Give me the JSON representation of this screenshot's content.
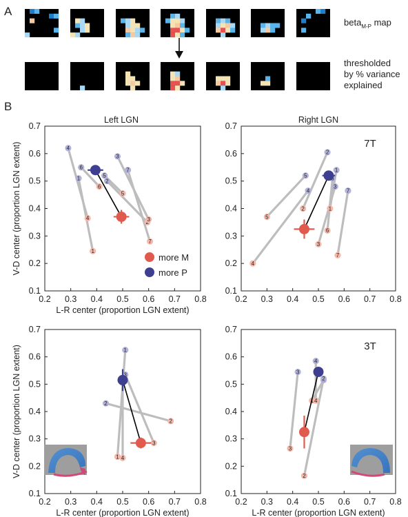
{
  "panel_a": {
    "letter": "A",
    "row1_label_main": "beta",
    "row1_label_sub": "M-P",
    "row1_label_tail": " map",
    "row2_label_lines": [
      "thresholded",
      "by % variance",
      "explained"
    ]
  },
  "panel_b": {
    "letter": "B",
    "legend": {
      "more_m": "more M",
      "more_p": "more P"
    },
    "colors": {
      "m_small": "#f4b8ab",
      "m_big": "#e05a4e",
      "p_small": "#b3b3da",
      "p_big": "#3f3f91",
      "line": "#bdbdbd"
    }
  },
  "chart_data": [
    {
      "type": "scatter",
      "title": "Left LGN",
      "field_label": "",
      "xlabel": "L-R center (proportion LGN extent)",
      "ylabel": "V-D center (proportion LGN extent)",
      "xlim": [
        0.2,
        0.8
      ],
      "ylim": [
        0.1,
        0.7
      ],
      "xticks": [
        "0.2",
        "0.3",
        "0.4",
        "0.5",
        "0.6",
        "0.7",
        "0.8"
      ],
      "yticks": [
        "0.1",
        "0.2",
        "0.3",
        "0.4",
        "0.5",
        "0.6",
        "0.7"
      ],
      "pairs": [
        {
          "id": "1",
          "p": [
            0.33,
            0.51
          ],
          "m": [
            0.385,
            0.245
          ]
        },
        {
          "id": "2",
          "p": [
            0.44,
            0.5
          ],
          "m": [
            0.595,
            0.35
          ]
        },
        {
          "id": "3",
          "p": [
            0.48,
            0.59
          ],
          "m": [
            0.6,
            0.36
          ]
        },
        {
          "id": "4",
          "p": [
            0.29,
            0.62
          ],
          "m": [
            0.365,
            0.365
          ]
        },
        {
          "id": "5",
          "p": [
            0.43,
            0.52
          ],
          "m": [
            0.5,
            0.455
          ]
        },
        {
          "id": "6",
          "p": [
            0.34,
            0.55
          ],
          "m": [
            0.41,
            0.48
          ]
        },
        {
          "id": "7",
          "p": [
            0.52,
            0.54
          ],
          "m": [
            0.605,
            0.28
          ]
        }
      ],
      "mean_p": {
        "x": 0.395,
        "y": 0.54,
        "xerr": 0.03,
        "yerr": 0.01
      },
      "mean_m": {
        "x": 0.495,
        "y": 0.37,
        "xerr": 0.03,
        "yerr": 0.025
      }
    },
    {
      "type": "scatter",
      "title": "Right LGN",
      "field_label": "7T",
      "xlabel": "",
      "ylabel": "",
      "xlim": [
        0.2,
        0.8
      ],
      "ylim": [
        0.1,
        0.7
      ],
      "xticks": [
        "0.2",
        "0.3",
        "0.4",
        "0.5",
        "0.6",
        "0.7",
        "0.8"
      ],
      "yticks": [
        "0.1",
        "0.2",
        "0.3",
        "0.4",
        "0.5",
        "0.6",
        "0.7"
      ],
      "pairs": [
        {
          "id": "1",
          "p": [
            0.57,
            0.54
          ],
          "m": [
            0.545,
            0.4
          ]
        },
        {
          "id": "2",
          "p": [
            0.535,
            0.605
          ],
          "m": [
            0.44,
            0.4
          ]
        },
        {
          "id": "3",
          "p": [
            0.565,
            0.48
          ],
          "m": [
            0.5,
            0.27
          ]
        },
        {
          "id": "4",
          "p": [
            0.46,
            0.465
          ],
          "m": [
            0.245,
            0.2
          ]
        },
        {
          "id": "5",
          "p": [
            0.45,
            0.52
          ],
          "m": [
            0.3,
            0.37
          ]
        },
        {
          "id": "6",
          "p": [
            0.555,
            0.51
          ],
          "m": [
            0.535,
            0.32
          ]
        },
        {
          "id": "7",
          "p": [
            0.615,
            0.465
          ],
          "m": [
            0.575,
            0.23
          ]
        }
      ],
      "mean_p": {
        "x": 0.54,
        "y": 0.52,
        "xerr": 0.025,
        "yerr": 0.015
      },
      "mean_m": {
        "x": 0.445,
        "y": 0.325,
        "xerr": 0.04,
        "yerr": 0.035
      }
    },
    {
      "type": "scatter",
      "title": "",
      "field_label": "",
      "xlabel": "L-R center (proportion LGN extent)",
      "ylabel": "V-D center (proportion LGN extent)",
      "xlim": [
        0.2,
        0.8
      ],
      "ylim": [
        0.1,
        0.7
      ],
      "xticks": [
        "0.2",
        "0.3",
        "0.4",
        "0.5",
        "0.6",
        "0.7",
        "0.8"
      ],
      "yticks": [
        "0.1",
        "0.2",
        "0.3",
        "0.4",
        "0.5",
        "0.6",
        "0.7"
      ],
      "pairs": [
        {
          "id": "1",
          "p": [
            0.51,
            0.625
          ],
          "m": [
            0.48,
            0.235
          ]
        },
        {
          "id": "2",
          "p": [
            0.435,
            0.43
          ],
          "m": [
            0.685,
            0.365
          ]
        },
        {
          "id": "3",
          "p": [
            0.51,
            0.535
          ],
          "m": [
            0.62,
            0.285
          ]
        },
        {
          "id": "4",
          "p": [
            0.5,
            0.505
          ],
          "m": [
            0.5,
            0.23
          ]
        }
      ],
      "mean_p": {
        "x": 0.5,
        "y": 0.515,
        "xerr": 0.015,
        "yerr": 0.04
      },
      "mean_m": {
        "x": 0.57,
        "y": 0.285,
        "xerr": 0.04,
        "yerr": 0.02
      }
    },
    {
      "type": "scatter",
      "title": "",
      "field_label": "3T",
      "xlabel": "L-R center (proportion LGN extent)",
      "ylabel": "",
      "xlim": [
        0.2,
        0.8
      ],
      "ylim": [
        0.1,
        0.7
      ],
      "xticks": [
        "0.2",
        "0.3",
        "0.4",
        "0.5",
        "0.6",
        "0.7",
        "0.8"
      ],
      "yticks": [
        "0.1",
        "0.2",
        "0.3",
        "0.4",
        "0.5",
        "0.6",
        "0.7"
      ],
      "pairs": [
        {
          "id": "1",
          "p": [
            0.52,
            0.515
          ],
          "m": [
            0.475,
            0.44
          ]
        },
        {
          "id": "2",
          "p": [
            0.52,
            0.52
          ],
          "m": [
            0.445,
            0.165
          ]
        },
        {
          "id": "3",
          "p": [
            0.42,
            0.545
          ],
          "m": [
            0.39,
            0.265
          ]
        },
        {
          "id": "4",
          "p": [
            0.49,
            0.585
          ],
          "m": [
            0.49,
            0.44
          ]
        }
      ],
      "mean_p": {
        "x": 0.5,
        "y": 0.545,
        "xerr": 0.015,
        "yerr": 0.01
      },
      "mean_m": {
        "x": 0.445,
        "y": 0.325,
        "xerr": 0.01,
        "yerr": 0.06
      }
    }
  ]
}
